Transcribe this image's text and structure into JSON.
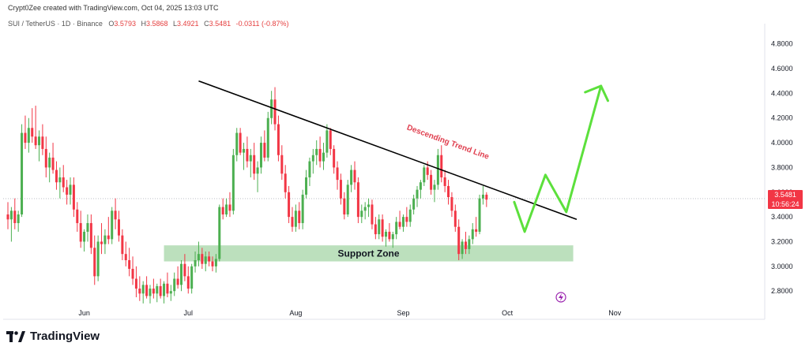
{
  "header": {
    "creator_text": "Crypt0Zee created with TradingView.com, Oct 04, 2025 13:03 UTC",
    "symbol_text": "SUI / TetherUS · 1D · Binance",
    "ohlc": [
      {
        "k": "O",
        "v": "3.5793"
      },
      {
        "k": "H",
        "v": "3.5868"
      },
      {
        "k": "L",
        "v": "3.4921"
      },
      {
        "k": "C",
        "v": "3.5481"
      },
      {
        "k": "",
        "v": "-0.0311 (-0.87%)"
      }
    ]
  },
  "price_tag": {
    "price": "3.5481",
    "countdown": "10:56:24"
  },
  "brand": {
    "name": "TradingView"
  },
  "colors": {
    "up": "#26a69a",
    "down": "#ef5350",
    "up_candle": "#4caf50",
    "down_candle": "#f23645",
    "trend_line": "#000000",
    "support": "#a5d6a7",
    "arrow": "#5ce03c",
    "annotation": "#e04050"
  },
  "chart_data": {
    "type": "candlestick",
    "ylim": [
      2.68,
      4.9
    ],
    "y_ticks": [
      "2.8000",
      "3.0000",
      "3.2000",
      "3.4000",
      "3.6000",
      "3.8000",
      "4.0000",
      "4.2000",
      "4.4000",
      "4.6000",
      "4.8000"
    ],
    "x_ticks": [
      {
        "label": "Jun",
        "bar": 22
      },
      {
        "label": "Jul",
        "bar": 52
      },
      {
        "label": "Aug",
        "bar": 83
      },
      {
        "label": "Sep",
        "bar": 114
      },
      {
        "label": "Oct",
        "bar": 144
      },
      {
        "label": "Nov",
        "bar": 175
      }
    ],
    "candles": [
      [
        3.42,
        3.52,
        3.3,
        3.38
      ],
      [
        3.38,
        3.48,
        3.2,
        3.45
      ],
      [
        3.45,
        3.55,
        3.3,
        3.35
      ],
      [
        3.35,
        3.45,
        3.28,
        3.42
      ],
      [
        3.42,
        4.15,
        3.4,
        4.08
      ],
      [
        4.08,
        4.22,
        3.95,
        4.0
      ],
      [
        4.0,
        4.2,
        3.92,
        4.12
      ],
      [
        4.12,
        4.28,
        4.0,
        4.05
      ],
      [
        4.05,
        4.3,
        3.95,
        3.98
      ],
      [
        3.98,
        4.1,
        3.85,
        4.05
      ],
      [
        4.05,
        4.15,
        3.9,
        3.95
      ],
      [
        3.95,
        4.05,
        3.72,
        3.8
      ],
      [
        3.8,
        3.92,
        3.68,
        3.88
      ],
      [
        3.88,
        4.0,
        3.75,
        3.78
      ],
      [
        3.78,
        3.85,
        3.62,
        3.68
      ],
      [
        3.68,
        3.8,
        3.55,
        3.72
      ],
      [
        3.72,
        3.82,
        3.6,
        3.64
      ],
      [
        3.64,
        3.7,
        3.5,
        3.58
      ],
      [
        3.58,
        3.72,
        3.5,
        3.66
      ],
      [
        3.66,
        3.72,
        3.4,
        3.46
      ],
      [
        3.46,
        3.52,
        3.28,
        3.35
      ],
      [
        3.35,
        3.45,
        3.15,
        3.2
      ],
      [
        3.2,
        3.3,
        3.12,
        3.28
      ],
      [
        3.28,
        3.42,
        3.2,
        3.35
      ],
      [
        3.35,
        3.42,
        3.1,
        3.15
      ],
      [
        3.15,
        3.25,
        2.85,
        2.92
      ],
      [
        2.92,
        3.25,
        2.88,
        3.2
      ],
      [
        3.2,
        3.35,
        3.1,
        3.18
      ],
      [
        3.18,
        3.3,
        3.1,
        3.25
      ],
      [
        3.25,
        3.4,
        3.18,
        3.22
      ],
      [
        3.22,
        3.48,
        3.18,
        3.45
      ],
      [
        3.45,
        3.55,
        3.3,
        3.38
      ],
      [
        3.38,
        3.45,
        3.2,
        3.25
      ],
      [
        3.25,
        3.3,
        3.05,
        3.1
      ],
      [
        3.1,
        3.2,
        3.0,
        3.05
      ],
      [
        3.05,
        3.15,
        2.92,
        2.98
      ],
      [
        2.98,
        3.08,
        2.85,
        2.9
      ],
      [
        2.9,
        3.0,
        2.75,
        2.82
      ],
      [
        2.82,
        2.92,
        2.72,
        2.78
      ],
      [
        2.78,
        2.88,
        2.7,
        2.85
      ],
      [
        2.85,
        2.92,
        2.74,
        2.76
      ],
      [
        2.76,
        2.85,
        2.7,
        2.82
      ],
      [
        2.82,
        2.9,
        2.74,
        2.78
      ],
      [
        2.78,
        2.86,
        2.71,
        2.84
      ],
      [
        2.84,
        2.9,
        2.74,
        2.76
      ],
      [
        2.76,
        2.88,
        2.7,
        2.86
      ],
      [
        2.86,
        2.95,
        2.75,
        2.78
      ],
      [
        2.78,
        2.85,
        2.72,
        2.8
      ],
      [
        2.8,
        2.95,
        2.76,
        2.9
      ],
      [
        2.9,
        3.0,
        2.82,
        2.85
      ],
      [
        2.85,
        3.05,
        2.8,
        3.02
      ],
      [
        3.02,
        3.1,
        2.88,
        2.92
      ],
      [
        2.92,
        3.0,
        2.78,
        2.82
      ],
      [
        2.82,
        3.02,
        2.78,
        3.0
      ],
      [
        3.0,
        3.12,
        2.95,
        3.05
      ],
      [
        3.05,
        3.2,
        3.0,
        3.1
      ],
      [
        3.1,
        3.15,
        2.98,
        3.02
      ],
      [
        3.02,
        3.12,
        2.96,
        3.08
      ],
      [
        3.08,
        3.12,
        3.0,
        3.04
      ],
      [
        3.04,
        3.08,
        2.96,
        3.0
      ],
      [
        3.0,
        3.1,
        2.95,
        3.06
      ],
      [
        3.06,
        3.5,
        3.04,
        3.48
      ],
      [
        3.48,
        3.55,
        3.38,
        3.42
      ],
      [
        3.42,
        3.55,
        3.4,
        3.5
      ],
      [
        3.5,
        3.6,
        3.4,
        3.45
      ],
      [
        3.45,
        3.95,
        3.42,
        3.9
      ],
      [
        3.9,
        4.12,
        3.85,
        4.08
      ],
      [
        4.08,
        4.12,
        3.9,
        3.92
      ],
      [
        3.92,
        4.0,
        3.78,
        3.95
      ],
      [
        3.95,
        4.05,
        3.8,
        3.85
      ],
      [
        3.85,
        3.95,
        3.72,
        3.9
      ],
      [
        3.9,
        4.0,
        3.7,
        3.75
      ],
      [
        3.75,
        3.85,
        3.6,
        3.8
      ],
      [
        3.8,
        4.05,
        3.75,
        4.0
      ],
      [
        4.0,
        4.1,
        3.85,
        3.88
      ],
      [
        3.88,
        4.25,
        3.85,
        4.2
      ],
      [
        4.2,
        4.42,
        4.15,
        4.35
      ],
      [
        4.35,
        4.45,
        4.1,
        4.15
      ],
      [
        4.15,
        4.22,
        3.85,
        3.9
      ],
      [
        3.9,
        3.98,
        3.7,
        3.75
      ],
      [
        3.75,
        3.82,
        3.55,
        3.6
      ],
      [
        3.6,
        3.65,
        3.35,
        3.4
      ],
      [
        3.4,
        3.48,
        3.28,
        3.32
      ],
      [
        3.32,
        3.5,
        3.28,
        3.45
      ],
      [
        3.45,
        3.52,
        3.3,
        3.35
      ],
      [
        3.35,
        3.62,
        3.3,
        3.58
      ],
      [
        3.58,
        3.78,
        3.55,
        3.72
      ],
      [
        3.72,
        3.88,
        3.65,
        3.85
      ],
      [
        3.85,
        3.95,
        3.75,
        3.9
      ],
      [
        3.9,
        4.02,
        3.82,
        3.95
      ],
      [
        3.95,
        4.05,
        3.8,
        3.85
      ],
      [
        3.85,
        4.0,
        3.78,
        3.92
      ],
      [
        3.92,
        4.15,
        3.88,
        4.1
      ],
      [
        4.1,
        4.12,
        3.9,
        3.95
      ],
      [
        3.95,
        3.98,
        3.75,
        3.8
      ],
      [
        3.8,
        3.85,
        3.62,
        3.7
      ],
      [
        3.7,
        3.75,
        3.5,
        3.55
      ],
      [
        3.55,
        3.6,
        3.38,
        3.42
      ],
      [
        3.42,
        3.7,
        3.4,
        3.66
      ],
      [
        3.66,
        3.82,
        3.6,
        3.78
      ],
      [
        3.78,
        3.85,
        3.62,
        3.68
      ],
      [
        3.68,
        3.72,
        3.35,
        3.4
      ],
      [
        3.4,
        3.5,
        3.35,
        3.45
      ],
      [
        3.45,
        3.52,
        3.38,
        3.48
      ],
      [
        3.48,
        3.55,
        3.4,
        3.5
      ],
      [
        3.5,
        3.54,
        3.3,
        3.34
      ],
      [
        3.34,
        3.4,
        3.22,
        3.26
      ],
      [
        3.26,
        3.42,
        3.22,
        3.38
      ],
      [
        3.38,
        3.42,
        3.2,
        3.24
      ],
      [
        3.24,
        3.3,
        3.16,
        3.28
      ],
      [
        3.28,
        3.35,
        3.2,
        3.22
      ],
      [
        3.22,
        3.28,
        3.15,
        3.26
      ],
      [
        3.26,
        3.4,
        3.22,
        3.36
      ],
      [
        3.36,
        3.45,
        3.3,
        3.32
      ],
      [
        3.32,
        3.42,
        3.28,
        3.4
      ],
      [
        3.4,
        3.48,
        3.32,
        3.36
      ],
      [
        3.36,
        3.5,
        3.32,
        3.46
      ],
      [
        3.46,
        3.58,
        3.42,
        3.55
      ],
      [
        3.55,
        3.65,
        3.48,
        3.62
      ],
      [
        3.62,
        3.7,
        3.55,
        3.68
      ],
      [
        3.68,
        3.82,
        3.65,
        3.8
      ],
      [
        3.8,
        3.85,
        3.7,
        3.74
      ],
      [
        3.74,
        3.78,
        3.58,
        3.62
      ],
      [
        3.62,
        3.7,
        3.52,
        3.66
      ],
      [
        3.66,
        3.95,
        3.62,
        3.9
      ],
      [
        3.9,
        3.98,
        3.68,
        3.72
      ],
      [
        3.72,
        3.78,
        3.6,
        3.65
      ],
      [
        3.65,
        3.7,
        3.5,
        3.56
      ],
      [
        3.56,
        3.6,
        3.4,
        3.45
      ],
      [
        3.45,
        3.5,
        3.28,
        3.32
      ],
      [
        3.32,
        3.38,
        3.05,
        3.1
      ],
      [
        3.1,
        3.22,
        3.06,
        3.2
      ],
      [
        3.2,
        3.28,
        3.1,
        3.14
      ],
      [
        3.14,
        3.25,
        3.1,
        3.22
      ],
      [
        3.22,
        3.35,
        3.18,
        3.3
      ],
      [
        3.3,
        3.4,
        3.24,
        3.28
      ],
      [
        3.28,
        3.58,
        3.26,
        3.55
      ],
      [
        3.55,
        3.65,
        3.5,
        3.58
      ],
      [
        3.58,
        3.6,
        3.48,
        3.54
      ]
    ],
    "annotations": {
      "trend_line": {
        "label": "Descending Trend Line",
        "from": {
          "bar": 55,
          "price": 4.5
        },
        "to": {
          "bar": 164,
          "price": 3.38
        }
      },
      "support_zone": {
        "label": "Support Zone",
        "from_bar": 45,
        "to_bar": 163,
        "low": 3.04,
        "high": 3.17
      },
      "projection": [
        {
          "bar": 146,
          "price": 3.52
        },
        {
          "bar": 149,
          "price": 3.28
        },
        {
          "bar": 155,
          "price": 3.74
        },
        {
          "bar": 161,
          "price": 3.44
        },
        {
          "bar": 171,
          "price": 4.46
        },
        {
          "bar": 173,
          "price": 4.34
        }
      ],
      "current_price": 3.5481
    }
  }
}
